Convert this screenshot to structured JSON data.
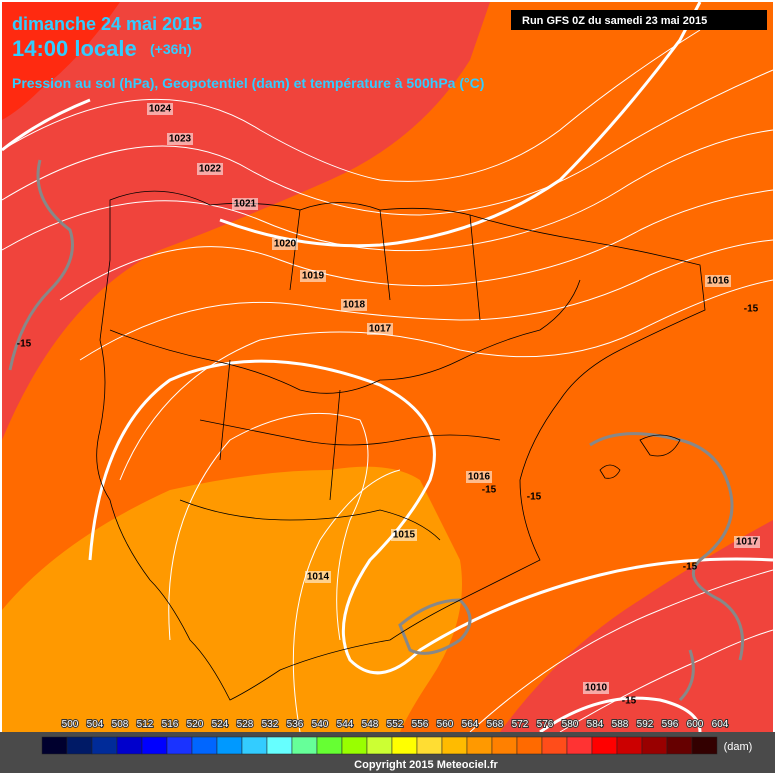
{
  "header": {
    "date": "dimanche 24 mai 2015",
    "time": "14:00 locale",
    "offset": "(+36h)",
    "description": "Pression au sol (hPa), Geopotentiel (dam) et température à 500hPa (°C)",
    "run": "Run GFS 0Z du samedi 23 mai 2015"
  },
  "isobar_labels": [
    1024,
    1023,
    1022,
    1021,
    1020,
    1019,
    1018,
    1017,
    1016,
    1015,
    1014,
    1016,
    1017,
    1010
  ],
  "temperature_labels": [
    "-15",
    "-15",
    "-15",
    "-15",
    "-15",
    "-15"
  ],
  "colorbar": {
    "ticks": [
      500,
      504,
      508,
      512,
      516,
      520,
      524,
      528,
      532,
      536,
      540,
      544,
      548,
      552,
      556,
      560,
      564,
      568,
      572,
      576,
      580,
      584,
      588,
      592,
      596,
      600,
      604
    ],
    "colors": [
      "#00002e",
      "#001a66",
      "#002b99",
      "#0000cc",
      "#0000ff",
      "#1a33ff",
      "#0066ff",
      "#0099ff",
      "#33ccff",
      "#66ffff",
      "#66ff99",
      "#66ff33",
      "#99ff00",
      "#ccff33",
      "#ffff00",
      "#ffdd33",
      "#ffbb00",
      "#ff9900",
      "#ff8000",
      "#ff6a00",
      "#ff4d1a",
      "#ff3333",
      "#ff0000",
      "#cc0000",
      "#990000",
      "#660000",
      "#330000"
    ],
    "unit": "(dam)"
  },
  "copyright": "Copyright 2015 Meteociel.fr"
}
